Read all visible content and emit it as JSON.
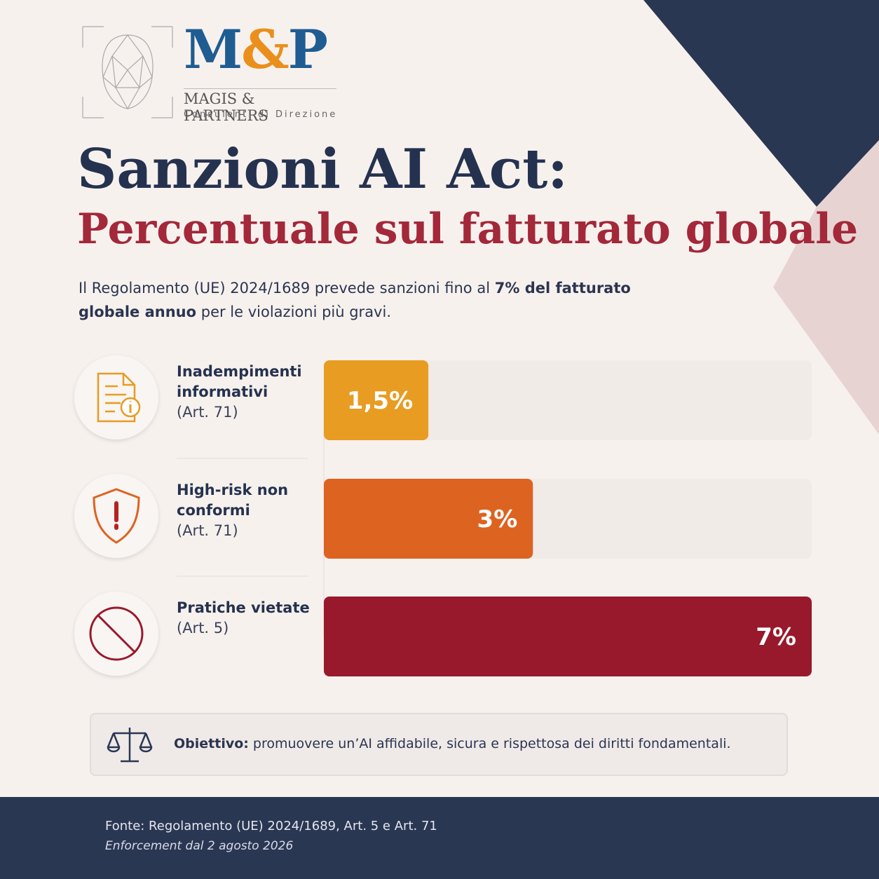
{
  "logo": {
    "m": "M",
    "amp": "&",
    "p": "P",
    "name": "MAGIS & PARTNERS",
    "tagline": "Consulenti di Direzione"
  },
  "chart_data": {
    "type": "bar",
    "title": "Sanzioni AI Act:",
    "subtitle": "Percentuale sul fatturato globale",
    "categories": [
      "Inadempimenti informativi",
      "High-risk non conformi",
      "Pratiche vietate"
    ],
    "articles": [
      "(Art. 71)",
      "(Art. 71)",
      "(Art. 5)"
    ],
    "values": [
      1.5,
      3,
      7
    ],
    "value_labels": [
      "1,5%",
      "3%",
      "7%"
    ],
    "colors": [
      "#e89c22",
      "#dd6320",
      "#98192b"
    ],
    "xlim": [
      0,
      7
    ]
  },
  "intro": {
    "text1": "Il Regolamento (UE) 2024/1689 prevede sanzioni fino al",
    "bold": "7% del fatturato globale annuo",
    "text2": "per le violazioni più gravi."
  },
  "note": {
    "label": "Obiettivo:",
    "text": "promuovere un’AI affidabile, sicura e rispettosa dei diritti fondamentali."
  },
  "footer": {
    "source": "Fonte: Regolamento (UE) 2024/1689, Art. 5 e Art. 71",
    "enforcement": "Enforcement dal 2 agosto 2026"
  }
}
